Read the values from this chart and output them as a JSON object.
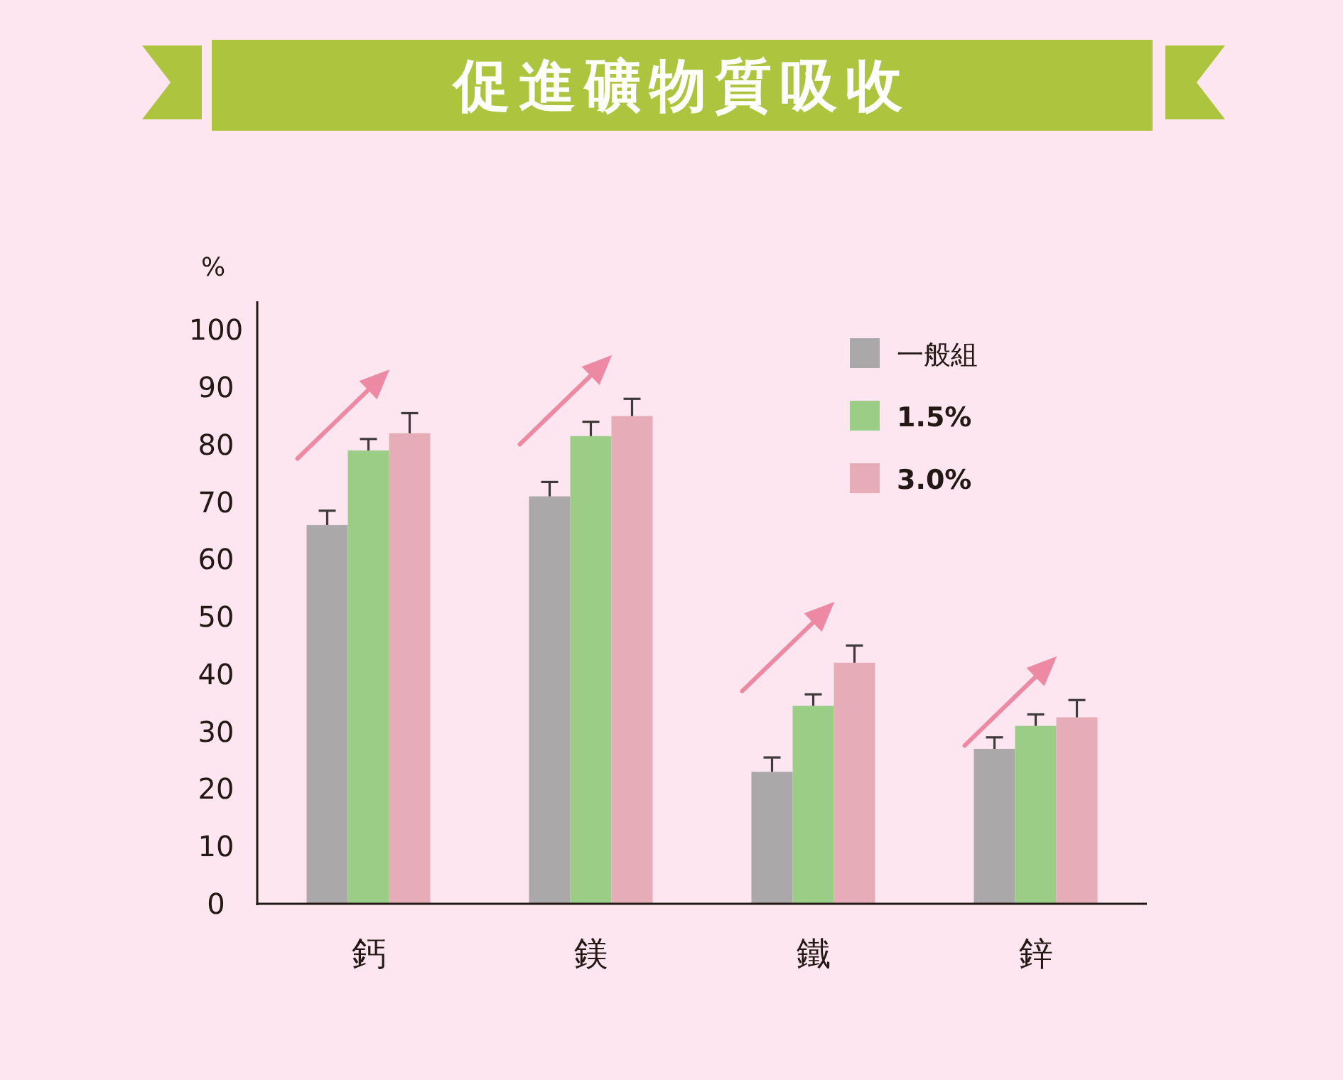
{
  "chart_data": {
    "type": "bar",
    "title": "促進礦物質吸收",
    "ylabel": "%",
    "categories": [
      "鈣",
      "鎂",
      "鐵",
      "鋅"
    ],
    "series": [
      {
        "name": "一般組",
        "color": "#aaa8a9",
        "values": [
          66,
          71,
          23,
          27
        ],
        "errors": [
          [
            66,
            68.5
          ],
          [
            71,
            73.5
          ],
          [
            23,
            25.5
          ],
          [
            27,
            29
          ]
        ]
      },
      {
        "name": "1.5%",
        "color": "#9ccd87",
        "values": [
          79,
          81.5,
          34.5,
          31
        ],
        "errors": [
          [
            79,
            81
          ],
          [
            81.5,
            84
          ],
          [
            34.5,
            36.5
          ],
          [
            31,
            33
          ]
        ]
      },
      {
        "name": "3.0%",
        "color": "#e6acb8",
        "values": [
          82,
          85,
          42,
          32.5
        ],
        "errors": [
          [
            82,
            85.5
          ],
          [
            85,
            88
          ],
          [
            42,
            45
          ],
          [
            32.5,
            35.5
          ]
        ]
      }
    ],
    "ylim": [
      0,
      105
    ],
    "yticks": [
      0,
      10,
      20,
      30,
      40,
      50,
      60,
      70,
      80,
      90,
      100
    ],
    "grid": false,
    "legend": "top right"
  }
}
